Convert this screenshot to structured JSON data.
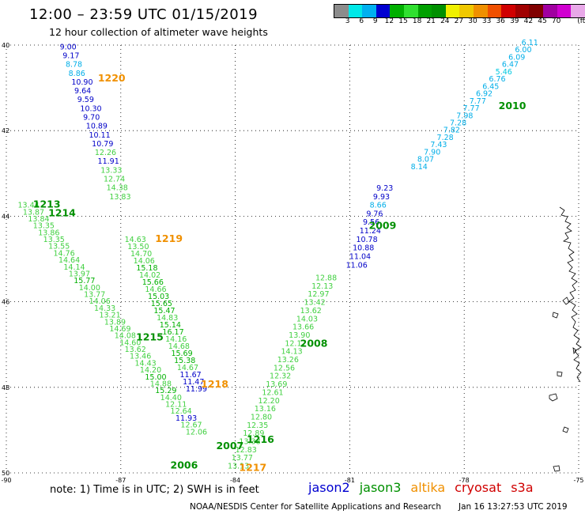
{
  "header": {
    "title": "12:00 – 23:59 UTC 01/15/2019",
    "subtitle": "12 hour collection of altimeter wave heights"
  },
  "colorbar": {
    "colors": [
      "#8c8c8c",
      "#00e8e8",
      "#00b0f0",
      "#0000d0",
      "#00b000",
      "#30e030",
      "#00a000",
      "#009000",
      "#f0f000",
      "#f0c800",
      "#f09000",
      "#f05000",
      "#d00000",
      "#a00000",
      "#800000",
      "#a000a0",
      "#d000d0",
      "#e8a8e8",
      "#000000"
    ],
    "labels": [
      "3",
      "6",
      "9",
      "12",
      "15",
      "18",
      "21",
      "24",
      "27",
      "30",
      "33",
      "36",
      "39",
      "42",
      "45",
      "70",
      "(ft)"
    ]
  },
  "map": {
    "lon_range": [
      -90,
      -75
    ],
    "lat_range": [
      40,
      50
    ],
    "lat_ticks": [
      "40",
      "42",
      "44",
      "46",
      "48",
      "50"
    ],
    "lon_ticks": [
      "-90",
      "-87",
      "-84",
      "-81",
      "-78",
      "-75"
    ]
  },
  "track_labels": [
    {
      "text": "1220",
      "color": "#f09000",
      "lon": -87.6,
      "lat": 40.85
    },
    {
      "text": "1213",
      "color": "#009000",
      "lon": -89.3,
      "lat": 43.8
    },
    {
      "text": "1214",
      "color": "#009000",
      "lon": -88.9,
      "lat": 44.0
    },
    {
      "text": "1219",
      "color": "#f09000",
      "lon": -86.1,
      "lat": 44.6
    },
    {
      "text": "1215",
      "color": "#009000",
      "lon": -86.6,
      "lat": 46.9
    },
    {
      "text": "1218",
      "color": "#f09000",
      "lon": -84.9,
      "lat": 48.0
    },
    {
      "text": "1216",
      "color": "#009000",
      "lon": -83.7,
      "lat": 49.3
    },
    {
      "text": "2007",
      "color": "#009000",
      "lon": -84.5,
      "lat": 49.45
    },
    {
      "text": "2006",
      "color": "#009000",
      "lon": -85.7,
      "lat": 49.9
    },
    {
      "text": "1217",
      "color": "#f09000",
      "lon": -83.9,
      "lat": 49.95
    },
    {
      "text": "2008",
      "color": "#009000",
      "lon": -82.3,
      "lat": 47.05
    },
    {
      "text": "2009",
      "color": "#009000",
      "lon": -80.5,
      "lat": 44.3
    },
    {
      "text": "2010",
      "color": "#009000",
      "lon": -77.1,
      "lat": 41.5
    }
  ],
  "tracks": [
    {
      "name": "track-1220",
      "start": [
        -88.6,
        40.1
      ],
      "end": [
        -87.3,
        43.6
      ],
      "values": [
        "9.00",
        "9.17",
        "8.78",
        "8.86",
        "10.90",
        "9.64",
        "9.59",
        "10.30",
        "9.70",
        "10.89",
        "10.11",
        "10.79",
        "12.26",
        "11.91",
        "13.33",
        "12.74",
        "14.38",
        "13.83"
      ]
    },
    {
      "name": "track-1219",
      "start": [
        -86.9,
        44.6
      ],
      "end": [
        -85.3,
        48.1
      ],
      "values": [
        "14.63",
        "13.50",
        "14.70",
        "14.06",
        "15.18",
        "14.02",
        "15.66",
        "14.66",
        "15.03",
        "15.65",
        "15.47",
        "14.83",
        "15.14",
        "16.17",
        "14.16",
        "14.68",
        "15.69",
        "15.38",
        "14.67",
        "11.67",
        "11.47",
        "11.99"
      ]
    },
    {
      "name": "track-1213",
      "start": [
        -89.7,
        43.8
      ],
      "end": [
        -85.3,
        49.1
      ],
      "values": [
        "13.44",
        "13.87",
        "13.84",
        "13.35",
        "13.86",
        "13.35",
        "13.55",
        "14.76",
        "14.64",
        "14.14",
        "13.97",
        "15.77",
        "14.00",
        "13.77",
        "14.06",
        "14.33",
        "13.21",
        "13.89",
        "14.69",
        "14.08",
        "14.60",
        "13.62",
        "13.46",
        "14.43",
        "14.20",
        "15.00",
        "14.88",
        "15.29",
        "14.40",
        "12.11",
        "12.64",
        "11.93",
        "12.67",
        "12.06"
      ]
    },
    {
      "name": "track-2008",
      "start": [
        -84.2,
        49.9
      ],
      "end": [
        -81.9,
        45.5
      ],
      "values": [
        "13.13",
        "13.77",
        "12.83",
        "13.38",
        "12.89",
        "12.35",
        "12.80",
        "13.16",
        "12.20",
        "12.61",
        "13.69",
        "12.32",
        "12.56",
        "13.26",
        "14.13",
        "12.17",
        "13.90",
        "13.66",
        "14.03",
        "13.62",
        "13.42",
        "12.97",
        "12.13",
        "12.88"
      ]
    },
    {
      "name": "track-2009",
      "start": [
        -81.1,
        45.2
      ],
      "end": [
        -80.3,
        43.4
      ],
      "values": [
        "11.06",
        "11.04",
        "10.88",
        "10.78",
        "11.24",
        "9.56",
        "9.76",
        "8.66",
        "9.93",
        "9.23"
      ]
    },
    {
      "name": "track-2010",
      "start": [
        -79.4,
        42.9
      ],
      "end": [
        -76.5,
        40.0
      ],
      "values": [
        "8.14",
        "8.07",
        "7.90",
        "7.43",
        "7.28",
        "7.82",
        "7.28",
        "7.98",
        "7.77",
        "7.77",
        "6.92",
        "6.45",
        "6.76",
        "5.46",
        "6.47",
        "6.09",
        "6.00",
        "6.11"
      ]
    }
  ],
  "footer": {
    "note": "note:  1) Time is in UTC;  2) SWH is in feet",
    "legend": [
      {
        "label": "jason2",
        "color": "#0000d0"
      },
      {
        "label": "jason3",
        "color": "#009000"
      },
      {
        "label": "altika",
        "color": "#f09000"
      },
      {
        "label": "cryosat",
        "color": "#d00000"
      },
      {
        "label": "s3a",
        "color": "#d00000"
      }
    ],
    "credit": "NOAA/NESDIS Center for Satellite Applications and Research",
    "timestamp": "Jan 16 13:27:53 UTC 2019"
  }
}
